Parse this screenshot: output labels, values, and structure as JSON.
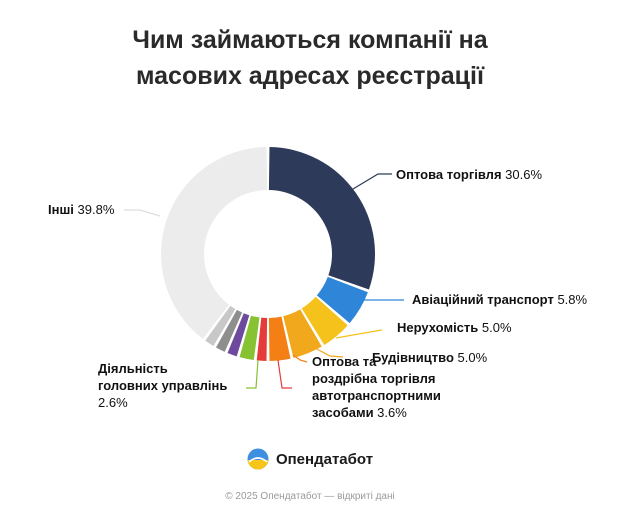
{
  "chart_data": {
    "type": "pie",
    "title_lines": [
      "Чим займаються компанії на",
      "масових адресах реєстрації"
    ],
    "slices": [
      {
        "label_lines": [
          "Оптова торгівля"
        ],
        "value": 30.6,
        "value_text": "30.6%",
        "color": "#2d3a5a"
      },
      {
        "label_lines": [
          "Авіаційний транспорт"
        ],
        "value": 5.8,
        "value_text": "5.8%",
        "color": "#2f86d8"
      },
      {
        "label_lines": [
          "Нерухомість"
        ],
        "value": 5.0,
        "value_text": "5.0%",
        "color": "#f5c21b"
      },
      {
        "label_lines": [
          "Будівництво"
        ],
        "value": 5.0,
        "value_text": "5.0%",
        "color": "#f2a81d"
      },
      {
        "label_lines": [
          "Оптова та",
          "роздрібна торгівля",
          "автотранспортними",
          "засобами"
        ],
        "value": 3.6,
        "value_text": "3.6%",
        "color": "#f47f14"
      },
      {
        "label_lines": [],
        "value": 1.9,
        "value_text": "",
        "color": "#e63b3b"
      },
      {
        "label_lines": [
          "Діяльність",
          "головних управлінь"
        ],
        "value": 2.6,
        "value_text": "2.6%",
        "color": "#86c232"
      },
      {
        "label_lines": [],
        "value": 1.9,
        "value_text": "",
        "color": "#6e4a9e"
      },
      {
        "label_lines": [],
        "value": 1.9,
        "value_text": "",
        "color": "#8e8e8e"
      },
      {
        "label_lines": [],
        "value": 1.9,
        "value_text": "",
        "color": "#c8c8c8"
      },
      {
        "label_lines": [
          "Інші"
        ],
        "value": 39.8,
        "value_text": "39.8%",
        "color": "#ececec"
      }
    ]
  },
  "brand": {
    "name": "Опендатабот"
  },
  "footer": "© 2025 Опендатабот — відкриті дані"
}
